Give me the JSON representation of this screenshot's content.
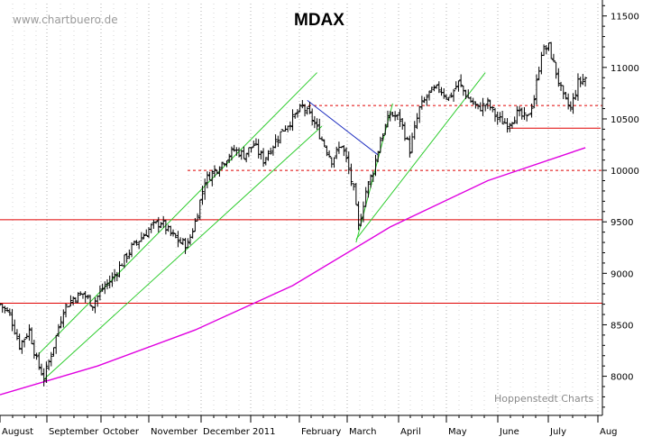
{
  "chart_data": {
    "type": "ohlc",
    "title": "MDAX",
    "watermark": "www.chartbuero.de",
    "credit": "Hoppenstedt Charts",
    "y_axis": {
      "side": "right",
      "ticks": [
        "11500",
        "11000",
        "10500",
        "10000",
        "9500",
        "9000",
        "8500",
        "8000"
      ],
      "tick_values": [
        11500,
        11000,
        10500,
        10000,
        9500,
        9000,
        8500,
        8000
      ],
      "ylim": [
        7620,
        11620
      ],
      "grid": "dotted vertical"
    },
    "x_axis": {
      "months": [
        "August",
        "September",
        "October",
        "November",
        "December",
        "2011",
        "February",
        "March",
        "April",
        "May",
        "June",
        "July",
        "Aug"
      ]
    },
    "price_path": [
      [
        0,
        8700
      ],
      [
        4,
        8600
      ],
      [
        8,
        8300
      ],
      [
        12,
        8450
      ],
      [
        15,
        8150
      ],
      [
        18,
        7980
      ],
      [
        22,
        8300
      ],
      [
        26,
        8650
      ],
      [
        30,
        8760
      ],
      [
        34,
        8800
      ],
      [
        38,
        8700
      ],
      [
        42,
        8850
      ],
      [
        46,
        8950
      ],
      [
        50,
        9100
      ],
      [
        54,
        9250
      ],
      [
        58,
        9350
      ],
      [
        62,
        9450
      ],
      [
        66,
        9500
      ],
      [
        70,
        9380
      ],
      [
        74,
        9300
      ],
      [
        77,
        9280
      ],
      [
        80,
        9500
      ],
      [
        84,
        9900
      ],
      [
        88,
        10000
      ],
      [
        92,
        10100
      ],
      [
        96,
        10200
      ],
      [
        100,
        10150
      ],
      [
        104,
        10250
      ],
      [
        108,
        10100
      ],
      [
        112,
        10250
      ],
      [
        116,
        10400
      ],
      [
        120,
        10500
      ],
      [
        124,
        10620
      ],
      [
        128,
        10500
      ],
      [
        132,
        10300
      ],
      [
        136,
        10100
      ],
      [
        140,
        10250
      ],
      [
        142,
        10100
      ],
      [
        145,
        9800
      ],
      [
        147,
        9450
      ],
      [
        150,
        9800
      ],
      [
        153,
        10000
      ],
      [
        156,
        10300
      ],
      [
        160,
        10550
      ],
      [
        164,
        10500
      ],
      [
        168,
        10200
      ],
      [
        172,
        10600
      ],
      [
        176,
        10750
      ],
      [
        180,
        10800
      ],
      [
        184,
        10700
      ],
      [
        188,
        10850
      ],
      [
        192,
        10700
      ],
      [
        196,
        10600
      ],
      [
        200,
        10650
      ],
      [
        204,
        10500
      ],
      [
        208,
        10450
      ],
      [
        212,
        10550
      ],
      [
        216,
        10500
      ],
      [
        219,
        10700
      ],
      [
        222,
        11150
      ],
      [
        225,
        11200
      ],
      [
        228,
        10950
      ],
      [
        231,
        10700
      ],
      [
        234,
        10600
      ],
      [
        237,
        10850
      ],
      [
        240,
        10900
      ]
    ],
    "moving_average": [
      [
        0,
        7820
      ],
      [
        40,
        8100
      ],
      [
        80,
        8450
      ],
      [
        120,
        8880
      ],
      [
        160,
        9450
      ],
      [
        200,
        9900
      ],
      [
        240,
        10220
      ]
    ],
    "horizontal_lines": [
      {
        "value": 8710,
        "style": "solid"
      },
      {
        "value": 9520,
        "style": "solid"
      },
      {
        "value": 10000,
        "style": "dashed"
      },
      {
        "value": 10630,
        "style": "dashed"
      },
      {
        "value": 10410,
        "style": "solid"
      }
    ],
    "trend_lines": [
      {
        "color": "green",
        "from": [
          16,
          8220
        ],
        "to": [
          130,
          10950
        ]
      },
      {
        "color": "green",
        "from": [
          18,
          7970
        ],
        "to": [
          132,
          10430
        ]
      },
      {
        "color": "green",
        "from": [
          146,
          9300
        ],
        "to": [
          161,
          10650
        ]
      },
      {
        "color": "green",
        "from": [
          146,
          9330
        ],
        "to": [
          199,
          10950
        ]
      },
      {
        "color": "blue",
        "from": [
          126,
          10680
        ],
        "to": [
          155,
          10150
        ]
      }
    ],
    "colors": {
      "price": "#000000",
      "moving_average": "#e000e0",
      "support_resistance": "#e00000",
      "trend_green": "#2ecc2e",
      "trend_blue": "#2030c0",
      "grid": "#b0b0b0"
    }
  }
}
